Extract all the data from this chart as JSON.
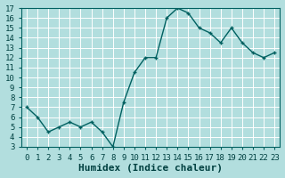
{
  "x": [
    0,
    1,
    2,
    3,
    4,
    5,
    6,
    7,
    8,
    9,
    10,
    11,
    12,
    13,
    14,
    15,
    16,
    17,
    18,
    19,
    20,
    21,
    22,
    23
  ],
  "y": [
    7.0,
    6.0,
    4.5,
    5.0,
    5.5,
    5.0,
    5.5,
    4.5,
    3.0,
    7.5,
    10.5,
    12.0,
    12.0,
    16.0,
    17.0,
    16.5,
    15.0,
    14.5,
    13.5,
    15.0,
    13.5,
    12.5,
    12.0,
    12.5
  ],
  "line_color": "#006060",
  "marker": "+",
  "marker_size": 3,
  "marker_linewidth": 1.0,
  "line_width": 1.0,
  "bg_color": "#b2dede",
  "grid_color": "#ffffff",
  "xlabel": "Humidex (Indice chaleur)",
  "xlabel_fontsize": 8,
  "xlabel_color": "#004040",
  "ylim": [
    3,
    17
  ],
  "xlim": [
    -0.5,
    23.5
  ],
  "yticks": [
    3,
    4,
    5,
    6,
    7,
    8,
    9,
    10,
    11,
    12,
    13,
    14,
    15,
    16,
    17
  ],
  "xtick_labels": [
    "0",
    "1",
    "2",
    "3",
    "4",
    "5",
    "6",
    "7",
    "8",
    "9",
    "10",
    "11",
    "12",
    "13",
    "14",
    "15",
    "16",
    "17",
    "18",
    "19",
    "20",
    "21",
    "22",
    "23"
  ],
  "tick_fontsize": 6.5,
  "tick_color": "#004040"
}
